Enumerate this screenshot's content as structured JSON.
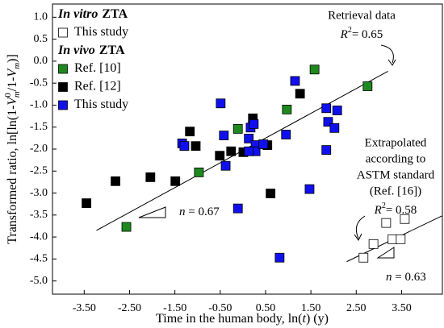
{
  "chart_data": {
    "type": "scatter",
    "xlabel": [
      "Time in the human body, ln(",
      "t",
      ")  (y)"
    ],
    "ylabel": [
      "Transformed ratio, ln[ln(1-",
      "V",
      "0",
      "m",
      "/1-",
      "V",
      "m",
      ")]"
    ],
    "xlim": [
      -4.2,
      4.4
    ],
    "ylim": [
      -5.3,
      1.3
    ],
    "xticks": [
      {
        "value": -3.5,
        "label": "-3.50"
      },
      {
        "value": -2.5,
        "label": "-2.50"
      },
      {
        "value": -1.5,
        "label": "-1.50"
      },
      {
        "value": -0.5,
        "label": "-0.50"
      },
      {
        "value": 0.5,
        "label": "0.50"
      },
      {
        "value": 1.5,
        "label": "1.50"
      },
      {
        "value": 2.5,
        "label": "2.50"
      },
      {
        "value": 3.5,
        "label": "3.50"
      }
    ],
    "yticks": [
      {
        "value": 1,
        "label": "1.0"
      },
      0.5,
      {
        "value": 0,
        "label": "0.0"
      },
      -0.5,
      {
        "value": -1,
        "label": "-1.0"
      },
      -1.5,
      {
        "value": -2,
        "label": "-2.0"
      },
      -2.5,
      {
        "value": -3,
        "label": "-3.0"
      },
      -3.5,
      {
        "value": -4,
        "label": "-4.0"
      },
      -4.5,
      {
        "value": -5,
        "label": "-5.0"
      }
    ],
    "legend_groups": [
      {
        "title_italic": "In vitro",
        "title_rest": "ZTA"
      },
      {
        "title_italic": "In vivo",
        "title_rest": "ZTA"
      }
    ],
    "series": [
      {
        "name": "This study",
        "group": 0,
        "color": "#ffffff",
        "x": [
          2.66,
          2.88,
          3.16,
          3.3,
          3.48,
          3.57
        ],
        "values": [
          -4.47,
          -4.16,
          -3.68,
          -4.05,
          -4.05,
          -3.59
        ]
      },
      {
        "name": "Ref. [10]",
        "group": 1,
        "color": "#1e8a1e",
        "x": [
          -2.57,
          -0.97,
          -0.11,
          0.97,
          1.58,
          2.75
        ],
        "values": [
          -3.77,
          -2.53,
          -1.54,
          -1.1,
          -0.19,
          -0.57
        ]
      },
      {
        "name": "Ref. [12]",
        "group": 1,
        "color": "#000000",
        "x": [
          -3.45,
          -2.81,
          -2.04,
          -1.49,
          -1.17,
          -1.04,
          -0.51,
          -0.26,
          0.01,
          0.22,
          0.54,
          0.61,
          1.26
        ],
        "values": [
          -3.23,
          -2.73,
          -2.64,
          -2.73,
          -1.6,
          -1.93,
          -2.15,
          -2.05,
          -2.07,
          -1.3,
          -1.91,
          -3.01,
          -0.74
        ]
      },
      {
        "name": "This study",
        "group": 1,
        "color": "#1010ee",
        "x": [
          -1.34,
          -1.29,
          -0.49,
          -0.42,
          -0.38,
          -0.11,
          0.13,
          0.17,
          0.24,
          0.28,
          0.28,
          0.45,
          0.13,
          0.81,
          0.95,
          1.15,
          1.47,
          1.84,
          1.88,
          1.84,
          2.02,
          2.08
        ],
        "values": [
          -1.87,
          -1.93,
          -0.96,
          -1.69,
          -2.38,
          -3.35,
          -1.76,
          -1.51,
          -1.43,
          -1.91,
          -2.05,
          -1.89,
          -2.05,
          -4.47,
          -1.67,
          -0.45,
          -2.91,
          -1.07,
          -1.38,
          -2.02,
          -1.52,
          -1.12
        ]
      }
    ],
    "fits": [
      {
        "x": [
          -3.23,
          3.2
        ],
        "values": [
          -3.85,
          -0.23
        ]
      },
      {
        "x": [
          2.29,
          4.39
        ],
        "values": [
          -4.56,
          -3.52
        ]
      }
    ],
    "annotations": {
      "retrieval": "Retrieval data",
      "r2_retrieval": [
        "R",
        "2",
        "= 0.65"
      ],
      "extrapolated": [
        "Extrapolated",
        "according to",
        "ASTM standard",
        "(Ref. [16])"
      ],
      "r2_extrapolated": [
        "R",
        "2",
        "= 0.58"
      ],
      "n_retrieval": [
        "n",
        " = 0.67"
      ],
      "n_extrapolated": [
        "n",
        " = 0.63"
      ]
    }
  }
}
